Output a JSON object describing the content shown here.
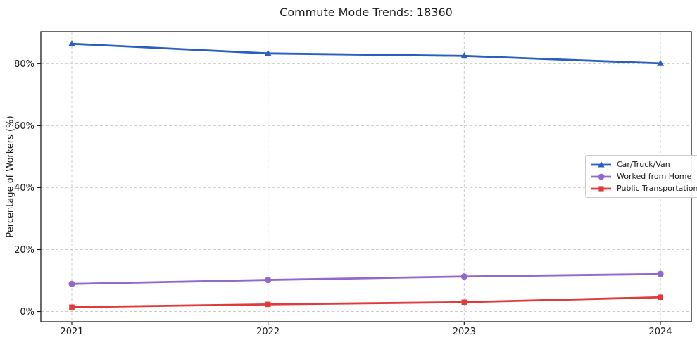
{
  "figure": {
    "title": "Commute Mode Trends: 18360"
  },
  "chart_data": {
    "type": "line",
    "title": "Commute Mode Trends: 18360",
    "xlabel": "",
    "ylabel": "Percentage of Workers (%)",
    "categories": [
      "2021",
      "2022",
      "2023",
      "2024"
    ],
    "series": [
      {
        "name": "Car/Truck/Van",
        "marker": "triangle",
        "color": "#2a5fc0",
        "values": [
          86.4,
          83.3,
          82.5,
          80.1
        ]
      },
      {
        "name": "Worked from Home",
        "marker": "circle",
        "color": "#9168ce",
        "values": [
          8.9,
          10.2,
          11.3,
          12.1
        ]
      },
      {
        "name": "Public Transportation",
        "marker": "square",
        "color": "#df3b3b",
        "values": [
          1.4,
          2.3,
          3.0,
          4.6
        ]
      }
    ],
    "yticks": {
      "values": [
        0,
        20,
        40,
        60,
        80
      ],
      "labels": [
        "0%",
        "20%",
        "40%",
        "60%",
        "80%"
      ]
    },
    "ylim": [
      -3.3,
      90.3
    ],
    "grid": true,
    "grid_style": "dashed",
    "legend_position": "center-right"
  },
  "colors": {
    "axis": "#1a1a1a",
    "grid": "#cccccc",
    "background": "#ffffff",
    "tick_label": "#1a1a1a"
  }
}
